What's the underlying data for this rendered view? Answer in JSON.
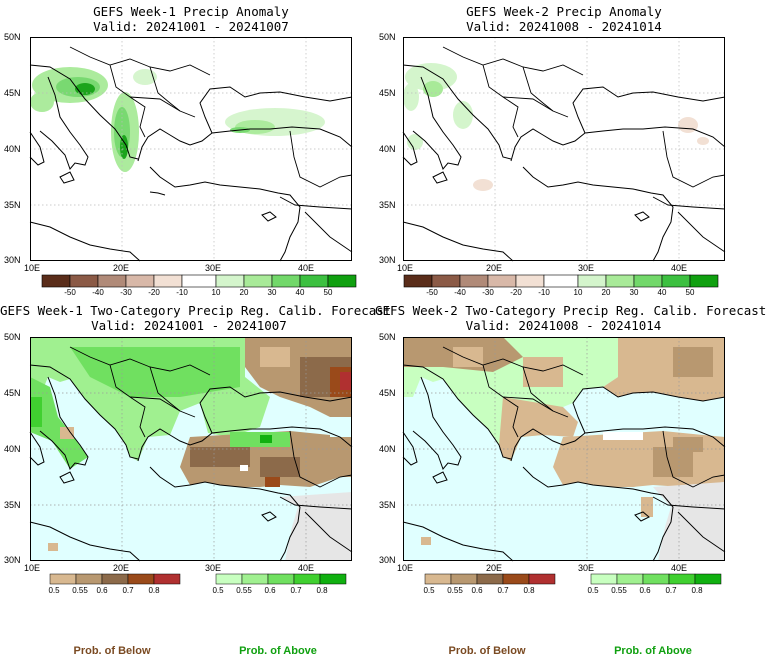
{
  "panels": [
    {
      "title_line1": "GEFS Week-1 Precip Anomaly",
      "title_line2": "Valid: 20241001 - 20241007",
      "kind": "anomaly",
      "ocean_color": "#ffffff",
      "y_ticks": [
        "50N",
        "45N",
        "40N",
        "35N",
        "30N"
      ],
      "x_ticks": [
        "10E",
        "20E",
        "30E",
        "40E"
      ]
    },
    {
      "title_line1": "GEFS Week-2 Precip Anomaly",
      "title_line2": "Valid: 20241008 - 20241014",
      "kind": "anomaly",
      "ocean_color": "#ffffff",
      "y_ticks": [
        "50N",
        "45N",
        "40N",
        "35N",
        "30N"
      ],
      "x_ticks": [
        "10E",
        "20E",
        "30E",
        "40E"
      ]
    },
    {
      "title_line1": "GEFS Week-1 Two-Category Precip Reg. Calib. Forecast",
      "title_line2": "Valid: 20241001 - 20241007",
      "kind": "probability",
      "ocean_color": "#e0ffff",
      "y_ticks": [
        "50N",
        "45N",
        "40N",
        "35N",
        "30N"
      ],
      "x_ticks": [
        "10E",
        "20E",
        "30E",
        "40E"
      ]
    },
    {
      "title_line1": "GEFS Week-2 Two-Category Precip Reg. Calib. Forecast",
      "title_line2": "Valid: 20241008 - 20241014",
      "kind": "probability",
      "ocean_color": "#e0ffff",
      "y_ticks": [
        "50N",
        "45N",
        "40N",
        "35N",
        "30N"
      ],
      "x_ticks": [
        "10E",
        "20E",
        "30E",
        "40E"
      ]
    }
  ],
  "anomaly_colorbar": {
    "labels": [
      "-50",
      "-40",
      "-30",
      "-20",
      "-10",
      "10",
      "20",
      "30",
      "40",
      "50"
    ],
    "colors": [
      "#5a2d1a",
      "#8b5a46",
      "#b08a78",
      "#d8b8a8",
      "#f2e0d4",
      "#ffffff",
      "#d4f5cc",
      "#a8ea98",
      "#72d86a",
      "#3cc040",
      "#10a010"
    ]
  },
  "prob_below_colorbar": {
    "labels": [
      "0.5",
      "0.55",
      "0.6",
      "0.7",
      "0.8"
    ],
    "colors": [
      "#d8b890",
      "#b89870",
      "#8c6a4a",
      "#9a4a1a",
      "#b03030"
    ],
    "caption": "Prob. of Below",
    "caption_color": "#7a4a22"
  },
  "prob_above_colorbar": {
    "labels": [
      "0.5",
      "0.55",
      "0.6",
      "0.7",
      "0.8"
    ],
    "colors": [
      "#c8ffc0",
      "#a0f090",
      "#70e060",
      "#40d030",
      "#10b010"
    ],
    "caption": "Prob. of Above",
    "caption_color": "#10a010"
  }
}
